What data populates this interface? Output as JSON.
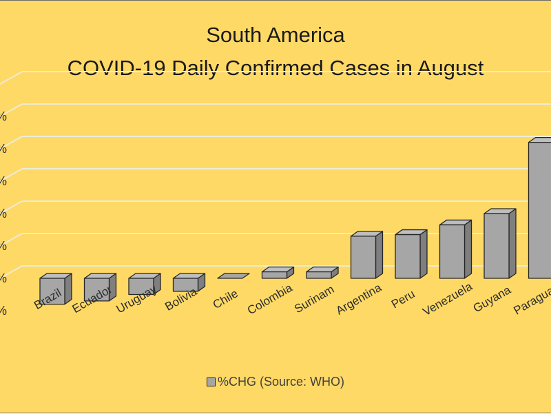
{
  "colors": {
    "background": "#ffd966",
    "bar_front": "#a6a6a6",
    "bar_side": "#7f7f7f",
    "bar_top": "#bfbfbf",
    "bar_outline": "#262626",
    "gridline": "#ececd8",
    "text": "#1a1a1a"
  },
  "chart_data": {
    "type": "bar",
    "title_lines": [
      "South America",
      "COVID-19 Daily Confirmed Cases in August"
    ],
    "xlabel": "",
    "ylabel": "",
    "categories": [
      "Brazil",
      "Ecuador",
      "Uruguay",
      "Bolivia",
      "Chile",
      "Colombia",
      "Surinam",
      "Argentina",
      "Peru",
      "Venezuela",
      "Guyana",
      "Paraguay"
    ],
    "series": [
      {
        "name": "%CHG (Source: WHO)",
        "values": [
          -0.8,
          -0.7,
          -0.5,
          -0.4,
          0.0,
          0.2,
          0.2,
          1.3,
          1.35,
          1.65,
          2.0,
          4.2
        ]
      }
    ],
    "ylim": [
      -1,
      6
    ],
    "y_tick_labels": [
      "%",
      "%",
      "%",
      "%",
      "%",
      "%",
      "%"
    ],
    "grid": true,
    "legend_position": "bottom",
    "style": "3d-column"
  }
}
